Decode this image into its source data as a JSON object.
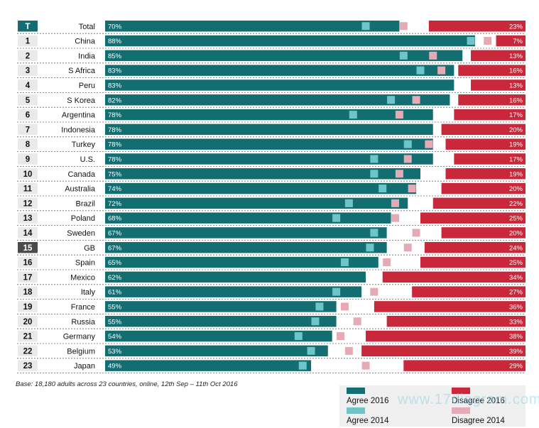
{
  "colors": {
    "agree_2016": "#136e72",
    "agree_2014": "#6ec4c6",
    "disagree_2016": "#c8283a",
    "disagree_2014": "#e5aab4",
    "rank_bg": "#136e72",
    "rank_highlight_bg": "#4b4b4b"
  },
  "chart_data": {
    "type": "bar",
    "layout": "horizontal diverging (agree from left, disagree from right)",
    "x_range_percent": [
      0,
      100
    ],
    "rows": [
      {
        "rank": "T",
        "country": "Total",
        "agree_2016": 70,
        "disagree_2016": 23,
        "agree_2014": 62,
        "disagree_2014": 71
      },
      {
        "rank": "1",
        "country": "China",
        "agree_2016": 88,
        "disagree_2016": 7,
        "agree_2014": 87,
        "disagree_2014": 91
      },
      {
        "rank": "2",
        "country": "India",
        "agree_2016": 85,
        "disagree_2016": 13,
        "agree_2014": 71,
        "disagree_2014": 78
      },
      {
        "rank": "3",
        "country": "S Africa",
        "agree_2016": 83,
        "disagree_2016": 16,
        "agree_2014": 75,
        "disagree_2014": 80
      },
      {
        "rank": "4",
        "country": "Peru",
        "agree_2016": 83,
        "disagree_2016": 13,
        "agree_2014": null,
        "disagree_2014": null
      },
      {
        "rank": "5",
        "country": "S Korea",
        "agree_2016": 82,
        "disagree_2016": 16,
        "agree_2014": 68,
        "disagree_2014": 74
      },
      {
        "rank": "6",
        "country": "Argentina",
        "agree_2016": 78,
        "disagree_2016": 17,
        "agree_2014": 59,
        "disagree_2014": 70
      },
      {
        "rank": "7",
        "country": "Indonesia",
        "agree_2016": 78,
        "disagree_2016": 20,
        "agree_2014": null,
        "disagree_2014": null
      },
      {
        "rank": "8",
        "country": "Turkey",
        "agree_2016": 78,
        "disagree_2016": 19,
        "agree_2014": 72,
        "disagree_2014": 77
      },
      {
        "rank": "9",
        "country": "U.S.",
        "agree_2016": 78,
        "disagree_2016": 17,
        "agree_2014": 64,
        "disagree_2014": 72
      },
      {
        "rank": "10",
        "country": "Canada",
        "agree_2016": 75,
        "disagree_2016": 19,
        "agree_2014": 64,
        "disagree_2014": 70
      },
      {
        "rank": "11",
        "country": "Australia",
        "agree_2016": 74,
        "disagree_2016": 20,
        "agree_2014": 66,
        "disagree_2014": 73
      },
      {
        "rank": "12",
        "country": "Brazil",
        "agree_2016": 72,
        "disagree_2016": 22,
        "agree_2014": 58,
        "disagree_2014": 69
      },
      {
        "rank": "13",
        "country": "Poland",
        "agree_2016": 68,
        "disagree_2016": 25,
        "agree_2014": 55,
        "disagree_2014": 69
      },
      {
        "rank": "14",
        "country": "Sweden",
        "agree_2016": 67,
        "disagree_2016": 20,
        "agree_2014": 64,
        "disagree_2014": 74
      },
      {
        "rank": "15",
        "country": "GB",
        "agree_2016": 67,
        "disagree_2016": 24,
        "agree_2014": 63,
        "disagree_2014": 72
      },
      {
        "rank": "16",
        "country": "Spain",
        "agree_2016": 65,
        "disagree_2016": 25,
        "agree_2014": 57,
        "disagree_2014": 67
      },
      {
        "rank": "17",
        "country": "Mexico",
        "agree_2016": 62,
        "disagree_2016": 34,
        "agree_2014": null,
        "disagree_2014": null
      },
      {
        "rank": "18",
        "country": "Italy",
        "agree_2016": 61,
        "disagree_2016": 27,
        "agree_2014": 55,
        "disagree_2014": 64
      },
      {
        "rank": "19",
        "country": "France",
        "agree_2016": 55,
        "disagree_2016": 36,
        "agree_2014": 51,
        "disagree_2014": 57
      },
      {
        "rank": "20",
        "country": "Russia",
        "agree_2016": 55,
        "disagree_2016": 33,
        "agree_2014": 50,
        "disagree_2014": 60
      },
      {
        "rank": "21",
        "country": "Germany",
        "agree_2016": 54,
        "disagree_2016": 38,
        "agree_2014": 46,
        "disagree_2014": 56
      },
      {
        "rank": "22",
        "country": "Belgium",
        "agree_2016": 53,
        "disagree_2016": 39,
        "agree_2014": 49,
        "disagree_2014": 58
      },
      {
        "rank": "23",
        "country": "Japan",
        "agree_2016": 49,
        "disagree_2016": 29,
        "agree_2014": 47,
        "disagree_2014": 62
      }
    ],
    "highlight_rank": "15",
    "legend": [
      "Agree 2016",
      "Disagree 2016",
      "Agree 2014",
      "Disagree 2014"
    ],
    "legend_placement": "bottom-right"
  },
  "footnote": "Base: 18,180 adults across 23 countries, online, 12th Sep – 11th Oct 2016",
  "watermark": "www.17diagram.com"
}
